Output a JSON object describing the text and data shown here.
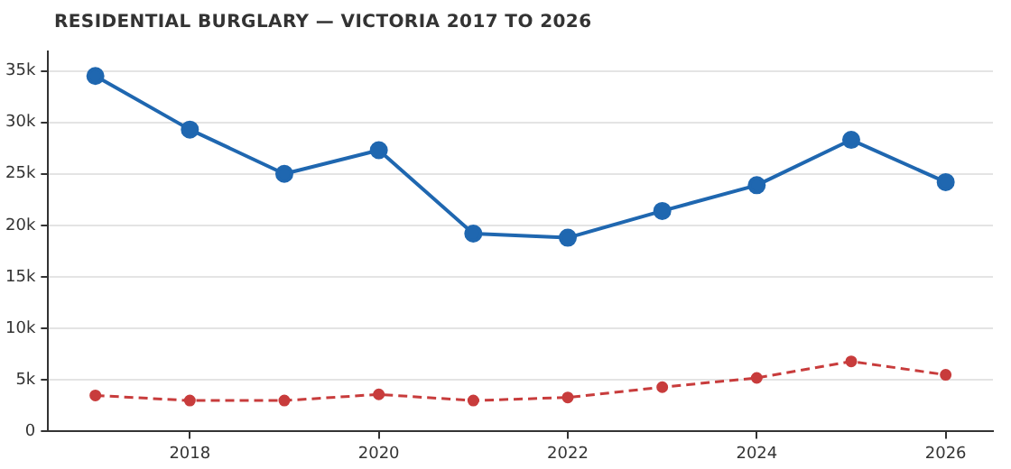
{
  "chart_data": {
    "type": "line",
    "title": "RESIDENTIAL BURGLARY — VICTORIA 2017 TO 2026",
    "categories": [
      null,
      "2018",
      null,
      "2020",
      null,
      "2022",
      null,
      "2024",
      null,
      "2026"
    ],
    "ylim": [
      0,
      36900
    ],
    "yticks": [
      {
        "value": 0,
        "label": "0"
      },
      {
        "value": 5000,
        "label": "5k"
      },
      {
        "value": 10000,
        "label": "10k"
      },
      {
        "value": 15000,
        "label": "15k"
      },
      {
        "value": 20000,
        "label": "20k"
      },
      {
        "value": 25000,
        "label": "25k"
      },
      {
        "value": 30000,
        "label": "30k"
      },
      {
        "value": 35000,
        "label": "35k"
      }
    ],
    "grid": "y",
    "legend": false,
    "series": [
      {
        "color": "#1f67b0",
        "marker": "circle",
        "line_style": "solid",
        "values": [
          34500,
          29300,
          25000,
          27300,
          19200,
          18800,
          21400,
          23900,
          28300,
          24200
        ]
      },
      {
        "color": "#c83c3c",
        "marker": "circle",
        "line_style": "dashed",
        "values": [
          3500,
          3000,
          3000,
          3600,
          3000,
          3300,
          4300,
          5200,
          6800,
          5500
        ]
      }
    ]
  }
}
